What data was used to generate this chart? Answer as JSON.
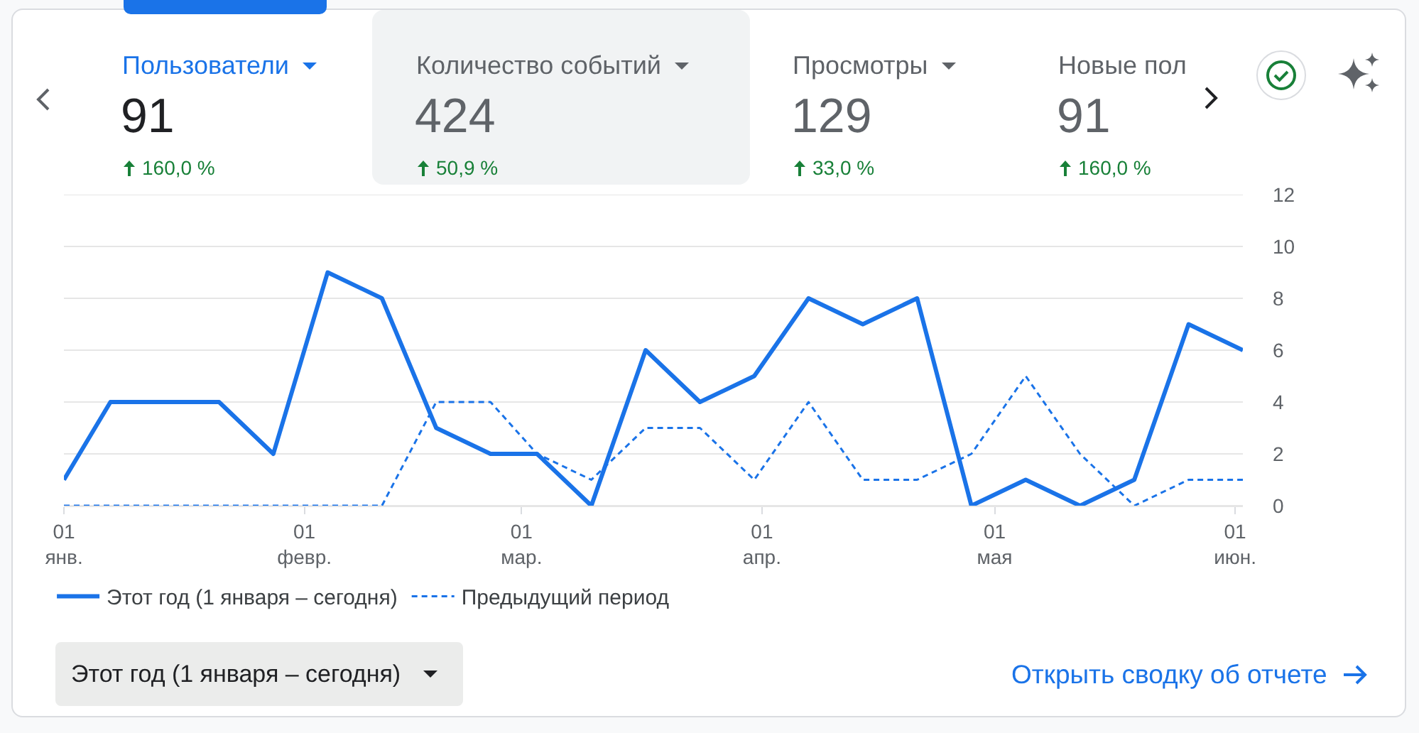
{
  "chart_data": {
    "type": "line",
    "x": [
      "--01-01",
      "--01-07",
      "--01-14",
      "--01-21",
      "--01-28",
      "--02-04",
      "--02-11",
      "--02-18",
      "--02-25",
      "--03-03",
      "--03-10",
      "--03-17",
      "--03-24",
      "--03-31",
      "--04-07",
      "--04-14",
      "--04-21",
      "--04-28",
      "--05-05",
      "--05-12",
      "--05-19",
      "--05-26",
      "--06-02"
    ],
    "series": [
      {
        "name": "Этот год (1 января – сегодня)",
        "color": "#1a73e8",
        "line_style": "solid",
        "values": [
          1,
          4,
          4,
          4,
          2,
          9,
          8,
          3,
          2,
          2,
          0,
          6,
          4,
          5,
          8,
          7,
          8,
          0,
          1,
          0,
          1,
          7,
          6
        ]
      },
      {
        "name": "Предыдущий период",
        "color": "#1a73e8",
        "line_style": "dashed",
        "values": [
          0,
          0,
          0,
          0,
          0,
          0,
          0,
          4,
          4,
          2,
          1,
          3,
          3,
          1,
          4,
          1,
          1,
          2,
          5,
          2,
          0,
          1,
          1
        ]
      }
    ],
    "xlim": [
      "--01-01",
      "--06-02"
    ],
    "xticks": [
      {
        "value": "--01-01",
        "label": "01\nянв."
      },
      {
        "value": "--02-01",
        "label": "01\nфевр."
      },
      {
        "value": "--03-01",
        "label": "01\nмар."
      },
      {
        "value": "--04-01",
        "label": "01\nапр."
      },
      {
        "value": "--05-01",
        "label": "01\nмая"
      },
      {
        "value": "--06-01",
        "label": "01\nиюн."
      }
    ],
    "ylim": [
      0,
      12
    ],
    "yticks": [
      0,
      2,
      4,
      6,
      8,
      10,
      12
    ],
    "grid": "y",
    "legend": "bottom left",
    "marker": "none",
    "annotations": [
      "Пользователи",
      "91",
      "160,0 %",
      "Количество событий",
      "424",
      "50,9 %",
      "Просмотры",
      "129",
      "33,0 %",
      "Новые пол",
      "91",
      "160,0 %",
      "Этот год (1 января – сегодня)",
      "Открыть сводку об отчете"
    ]
  }
}
